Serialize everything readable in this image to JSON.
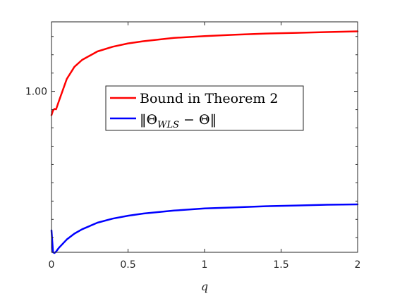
{
  "chart_data": {
    "type": "line",
    "xlabel": "q",
    "ylabel": "",
    "xlim": [
      0,
      2
    ],
    "x_ticks": [
      0,
      0.5,
      1,
      1.5,
      2
    ],
    "x_tick_labels": [
      "0",
      "0.5",
      "1",
      "1.5",
      "2"
    ],
    "y_tick_labels": [
      "1.00"
    ],
    "y_tick_values": [
      1.0
    ],
    "ylim": [
      0.56,
      1.19
    ],
    "yscale": "linear",
    "grid": false,
    "legend_position": "center",
    "series": [
      {
        "name": "Bound in Theorem 2",
        "color": "#ff0000",
        "x": [
          0,
          0.01,
          0.02,
          0.03,
          0.05,
          0.1,
          0.15,
          0.2,
          0.3,
          0.4,
          0.5,
          0.6,
          0.8,
          1.0,
          1.2,
          1.4,
          1.6,
          1.8,
          2.0
        ],
        "y": [
          0.935,
          0.948,
          0.952,
          0.951,
          0.975,
          1.034,
          1.067,
          1.086,
          1.109,
          1.122,
          1.131,
          1.137,
          1.146,
          1.151,
          1.155,
          1.158,
          1.16,
          1.162,
          1.164
        ]
      },
      {
        "name": "||Θ_WLS − Θ||",
        "color": "#0000ff",
        "x": [
          0,
          0.01,
          0.02,
          0.03,
          0.05,
          0.1,
          0.15,
          0.2,
          0.3,
          0.4,
          0.5,
          0.6,
          0.8,
          1.0,
          1.2,
          1.4,
          1.6,
          1.8,
          2.0
        ],
        "y": [
          0.62,
          0.56,
          0.558,
          0.562,
          0.573,
          0.595,
          0.611,
          0.623,
          0.641,
          0.652,
          0.66,
          0.666,
          0.674,
          0.68,
          0.683,
          0.686,
          0.688,
          0.69,
          0.691
        ]
      }
    ]
  },
  "legend": {
    "items": [
      {
        "label": "Bound in Theorem 2"
      },
      {
        "label_parts": {
          "open": "‖Θ",
          "sub": "WLS",
          "mid": " − Θ",
          "close": "‖"
        }
      }
    ]
  },
  "colors": {
    "axis": "#262626",
    "red": "#ff0000",
    "blue": "#0000ff"
  }
}
